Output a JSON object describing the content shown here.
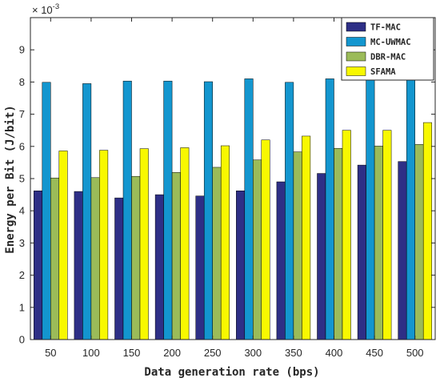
{
  "chart_data": {
    "type": "bar",
    "title": "",
    "xlabel": "Data generation rate (bps)",
    "ylabel": "Energy per Bit (J/bit)",
    "y_multiplier_label": "× 10",
    "y_multiplier_exponent": "-3",
    "y_display_scale": 1000,
    "ylim": [
      0,
      0.01
    ],
    "yticks": [
      0,
      0.001,
      0.002,
      0.003,
      0.004,
      0.005,
      0.006,
      0.007,
      0.008,
      0.009
    ],
    "ytick_labels": [
      "0",
      "1",
      "2",
      "3",
      "4",
      "5",
      "6",
      "7",
      "8",
      "9"
    ],
    "categories": [
      "50",
      "100",
      "150",
      "200",
      "250",
      "300",
      "350",
      "400",
      "450",
      "500"
    ],
    "legend_position": "top-right",
    "grid": false,
    "series": [
      {
        "name": "TF-MAC",
        "color": "#2e2f86",
        "values": [
          0.00462,
          0.0046,
          0.0044,
          0.0045,
          0.00446,
          0.00462,
          0.0049,
          0.00516,
          0.00542,
          0.00553
        ]
      },
      {
        "name": "MC-UWMAC",
        "color": "#1396cf",
        "values": [
          0.00799,
          0.00795,
          0.00803,
          0.00803,
          0.00801,
          0.0081,
          0.00799,
          0.0081,
          0.00809,
          0.00807
        ]
      },
      {
        "name": "DBR-MAC",
        "color": "#9bbb59",
        "values": [
          0.00502,
          0.00503,
          0.00507,
          0.00519,
          0.00535,
          0.00558,
          0.00583,
          0.00594,
          0.00601,
          0.00606
        ]
      },
      {
        "name": "SFAMA",
        "color": "#f8f800",
        "values": [
          0.00586,
          0.00588,
          0.00593,
          0.00596,
          0.00602,
          0.0062,
          0.00632,
          0.0065,
          0.0065,
          0.00674
        ]
      }
    ]
  }
}
